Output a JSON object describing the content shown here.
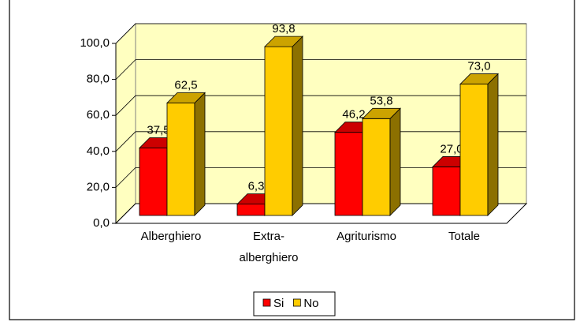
{
  "chart_data": {
    "type": "bar3d",
    "categories": [
      "Alberghiero",
      "Extra-alberghiero",
      "Agriturismo",
      "Totale"
    ],
    "series": [
      {
        "name": "Si",
        "color": "#ff0000",
        "values": [
          37.5,
          6.3,
          46.2,
          27.0
        ],
        "value_labels": [
          "37,5",
          "6,3",
          "46,2",
          "27,0"
        ]
      },
      {
        "name": "No",
        "color": "#ffcc00",
        "values": [
          62.5,
          93.8,
          53.8,
          73.0
        ],
        "value_labels": [
          "62,5",
          "93,8",
          "53,8",
          "73,0"
        ]
      }
    ],
    "ylim": [
      0,
      100
    ],
    "yticks": [
      {
        "value": 0,
        "label": "0,0"
      },
      {
        "value": 20,
        "label": "20,0"
      },
      {
        "value": 40,
        "label": "40,0"
      },
      {
        "value": 60,
        "label": "60,0"
      },
      {
        "value": 80,
        "label": "80,0"
      },
      {
        "value": 100,
        "label": "100,0"
      }
    ],
    "grid": true,
    "legend": "bottom",
    "wall_color": "#ffffc0"
  }
}
